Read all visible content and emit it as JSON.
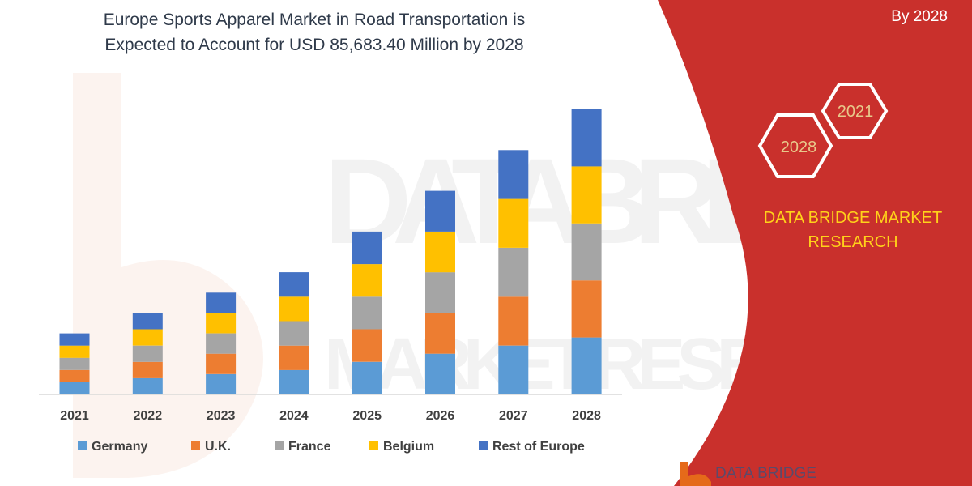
{
  "chart_data": {
    "type": "bar",
    "stacked": true,
    "title": [
      "Europe Sports Apparel Market in Road Transportation is",
      "Expected to Account for USD 85,683.40 Million by 2028"
    ],
    "categories": [
      "2021",
      "2022",
      "2023",
      "2024",
      "2025",
      "2026",
      "2027",
      "2028"
    ],
    "series": [
      {
        "name": "Germany",
        "color": "#5b9bd5",
        "values": [
          15,
          20,
          25,
          30,
          40,
          50,
          60,
          70
        ]
      },
      {
        "name": "U.K.",
        "color": "#ed7d31",
        "values": [
          15,
          20,
          25,
          30,
          40,
          50,
          60,
          70
        ]
      },
      {
        "name": "France",
        "color": "#a5a5a5",
        "values": [
          15,
          20,
          25,
          30,
          40,
          50,
          60,
          70
        ]
      },
      {
        "name": "Belgium",
        "color": "#ffc000",
        "values": [
          15,
          20,
          25,
          30,
          40,
          50,
          60,
          70
        ]
      },
      {
        "name": "Rest of Europe",
        "color": "#4472c4",
        "values": [
          15,
          20,
          25,
          30,
          40,
          50,
          60,
          70
        ]
      }
    ],
    "ylim": [
      0,
      350
    ],
    "legend_position": "bottom",
    "grid": false
  },
  "side_panel": {
    "corner_text": "By 2028",
    "hex_left": "2028",
    "hex_right": "2021",
    "brand_lines": [
      "DATA BRIDGE MARKET",
      "RESEARCH"
    ],
    "panel_color": "#c9302c"
  },
  "logo": {
    "text": "DATA BRIDGE"
  }
}
